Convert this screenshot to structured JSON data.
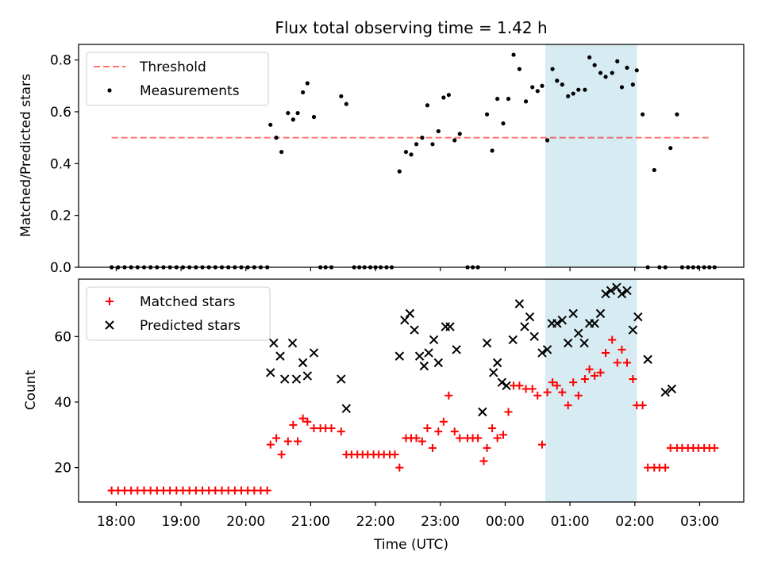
{
  "title": "Flux total observing time = 1.42 h",
  "xlabel": "Time (UTC)",
  "x_tick_labels": [
    "18:00",
    "19:00",
    "20:00",
    "21:00",
    "22:00",
    "23:00",
    "00:00",
    "01:00",
    "02:00",
    "03:00"
  ],
  "highlight_color": "#add8e6",
  "chart_data": [
    {
      "type": "scatter",
      "ylabel": "Matched/Predicted stars",
      "ylim": [
        0.0,
        0.86
      ],
      "xlim": [
        17.42,
        27.68
      ],
      "y_ticks": [
        0.0,
        0.2,
        0.4,
        0.6,
        0.8
      ],
      "y_tick_labels": [
        "0.0",
        "0.2",
        "0.4",
        "0.6",
        "0.8"
      ],
      "highlight_span": [
        24.62,
        26.03
      ],
      "legend": "upper left",
      "threshold": {
        "name": "Threshold",
        "value": 0.5,
        "x_range": [
          17.93,
          27.17
        ],
        "color": "#ff0000",
        "style": "dashed"
      },
      "series": [
        {
          "name": "Measurements",
          "color": "#000000",
          "marker": "dot",
          "x": [
            17.93,
            18.03,
            18.13,
            18.23,
            18.33,
            18.43,
            18.53,
            18.63,
            18.73,
            18.83,
            18.93,
            19.03,
            19.13,
            19.23,
            19.33,
            19.43,
            19.53,
            19.63,
            19.73,
            19.83,
            19.93,
            20.03,
            20.13,
            20.23,
            20.33,
            20.38,
            20.47,
            20.55,
            20.65,
            20.73,
            20.8,
            20.88,
            20.95,
            21.05,
            21.15,
            21.23,
            21.32,
            21.47,
            21.55,
            21.67,
            21.75,
            21.83,
            21.92,
            22.0,
            22.08,
            22.17,
            22.25,
            22.37,
            22.47,
            22.55,
            22.63,
            22.72,
            22.8,
            22.88,
            22.97,
            23.05,
            23.13,
            23.22,
            23.3,
            23.42,
            23.5,
            23.58,
            23.72,
            23.8,
            23.88,
            23.97,
            24.05,
            24.13,
            24.22,
            24.32,
            24.42,
            24.5,
            24.57,
            24.65,
            24.73,
            24.8,
            24.88,
            24.97,
            25.05,
            25.13,
            25.23,
            25.3,
            25.38,
            25.47,
            25.55,
            25.65,
            25.73,
            25.8,
            25.88,
            25.97,
            26.03,
            26.12,
            26.2,
            26.3,
            26.38,
            26.47,
            26.55,
            26.65,
            26.73,
            26.82,
            26.9,
            26.98,
            27.07,
            27.15,
            27.23
          ],
          "y": [
            0,
            0,
            0,
            0,
            0,
            0,
            0,
            0,
            0,
            0,
            0,
            0,
            0,
            0,
            0,
            0,
            0,
            0,
            0,
            0,
            0,
            0,
            0,
            0,
            0,
            0.55,
            0.5,
            0.445,
            0.595,
            0.57,
            0.595,
            0.675,
            0.71,
            0.58,
            0,
            0,
            0,
            0.66,
            0.63,
            0,
            0,
            0,
            0,
            0,
            0,
            0,
            0,
            0.37,
            0.445,
            0.435,
            0.475,
            0.5,
            0.625,
            0.475,
            0.525,
            0.655,
            0.665,
            0.49,
            0.515,
            0,
            0,
            0,
            0.59,
            0.45,
            0.65,
            0.555,
            0.65,
            0.82,
            0.765,
            0.64,
            0.695,
            0.68,
            0.7,
            0.49,
            0.765,
            0.72,
            0.705,
            0.66,
            0.67,
            0.685,
            0.685,
            0.81,
            0.78,
            0.75,
            0.735,
            0.75,
            0.795,
            0.695,
            0.77,
            0.705,
            0.76,
            0.59,
            0,
            0.375,
            0,
            0,
            0.46,
            0.59,
            0,
            0,
            0,
            0,
            0,
            0,
            0
          ]
        }
      ]
    },
    {
      "type": "scatter",
      "ylabel": "Count",
      "ylim": [
        9.5,
        77.5
      ],
      "xlim": [
        17.42,
        27.68
      ],
      "y_ticks": [
        20,
        40,
        60
      ],
      "y_tick_labels": [
        "20",
        "40",
        "60"
      ],
      "highlight_span": [
        24.62,
        26.03
      ],
      "legend": "upper left",
      "series": [
        {
          "name": "Matched stars",
          "color": "#ff0000",
          "marker": "plus",
          "x": [
            17.93,
            18.03,
            18.13,
            18.23,
            18.33,
            18.43,
            18.53,
            18.63,
            18.73,
            18.83,
            18.93,
            19.03,
            19.13,
            19.23,
            19.33,
            19.43,
            19.53,
            19.63,
            19.73,
            19.83,
            19.93,
            20.03,
            20.13,
            20.23,
            20.33,
            20.38,
            20.47,
            20.55,
            20.65,
            20.73,
            20.8,
            20.88,
            20.95,
            21.05,
            21.15,
            21.23,
            21.32,
            21.47,
            21.55,
            21.63,
            21.72,
            21.8,
            21.88,
            21.97,
            22.05,
            22.13,
            22.22,
            22.3,
            22.37,
            22.47,
            22.55,
            22.63,
            22.72,
            22.8,
            22.88,
            22.97,
            23.05,
            23.13,
            23.22,
            23.3,
            23.42,
            23.5,
            23.58,
            23.67,
            23.72,
            23.8,
            23.88,
            23.97,
            24.05,
            24.13,
            24.22,
            24.32,
            24.42,
            24.5,
            24.57,
            24.65,
            24.73,
            24.8,
            24.88,
            24.97,
            25.05,
            25.13,
            25.23,
            25.3,
            25.38,
            25.47,
            25.55,
            25.65,
            25.73,
            25.8,
            25.88,
            25.97,
            26.03,
            26.12,
            26.2,
            26.3,
            26.38,
            26.47,
            26.55,
            26.65,
            26.73,
            26.82,
            26.9,
            26.98,
            27.07,
            27.15,
            27.23
          ],
          "y": [
            13,
            13,
            13,
            13,
            13,
            13,
            13,
            13,
            13,
            13,
            13,
            13,
            13,
            13,
            13,
            13,
            13,
            13,
            13,
            13,
            13,
            13,
            13,
            13,
            13,
            27,
            29,
            24,
            28,
            33,
            28,
            35,
            34,
            32,
            32,
            32,
            32,
            31,
            24,
            24,
            24,
            24,
            24,
            24,
            24,
            24,
            24,
            24,
            20,
            29,
            29,
            29,
            28,
            32,
            26,
            31,
            34,
            42,
            31,
            29,
            29,
            29,
            29,
            22,
            26,
            32,
            29,
            30,
            37,
            45,
            45,
            44,
            44,
            42,
            27,
            43,
            46,
            45,
            43,
            39,
            46,
            42,
            47,
            50,
            48,
            49,
            55,
            59,
            52,
            56,
            52,
            47,
            39,
            39,
            20,
            20,
            20,
            20,
            26,
            26,
            26,
            26,
            26,
            26,
            26,
            26,
            26
          ]
        },
        {
          "name": "Predicted stars",
          "color": "#000000",
          "marker": "x",
          "x": [
            20.38,
            20.43,
            20.53,
            20.6,
            20.72,
            20.78,
            20.88,
            20.95,
            21.05,
            21.47,
            21.55,
            22.37,
            22.45,
            22.53,
            22.6,
            22.68,
            22.75,
            22.82,
            22.9,
            22.97,
            23.08,
            23.15,
            23.25,
            23.65,
            23.72,
            23.82,
            23.88,
            23.95,
            24.02,
            24.12,
            24.22,
            24.3,
            24.38,
            24.45,
            24.57,
            24.65,
            24.72,
            24.8,
            24.88,
            24.97,
            25.05,
            25.13,
            25.22,
            25.3,
            25.38,
            25.47,
            25.55,
            25.63,
            25.72,
            25.8,
            25.88,
            25.97,
            26.05,
            26.2,
            26.47,
            26.57
          ],
          "y": [
            49,
            58,
            54,
            47,
            58,
            47,
            52,
            48,
            55,
            47,
            38,
            54,
            65,
            67,
            62,
            54,
            51,
            55,
            59,
            52,
            63,
            63,
            56,
            37,
            58,
            49,
            52,
            46,
            45,
            59,
            70,
            63,
            66,
            60,
            55,
            56,
            64,
            64,
            65,
            58,
            67,
            61,
            58,
            64,
            64,
            67,
            73,
            74,
            75,
            73,
            74,
            62,
            66,
            53,
            43,
            44
          ]
        }
      ]
    }
  ]
}
